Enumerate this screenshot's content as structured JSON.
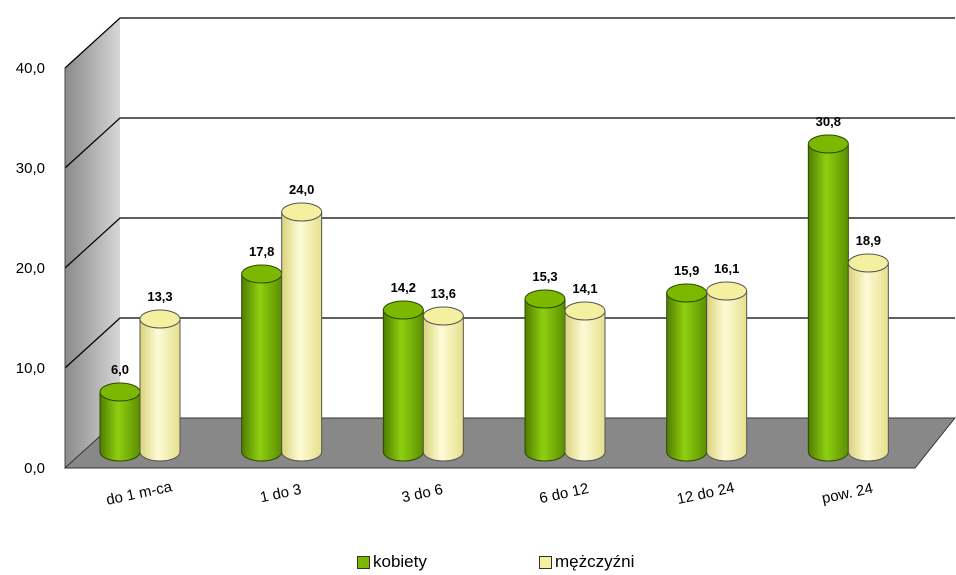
{
  "chart_data": {
    "type": "bar",
    "categories": [
      "do 1 m-ca",
      "1 do 3",
      "3 do 6",
      "6 do 12",
      "12 do 24",
      "pow. 24"
    ],
    "series": [
      {
        "name": "kobiety",
        "values": [
          6.0,
          17.8,
          14.2,
          15.3,
          15.9,
          30.8
        ],
        "labels": [
          "6,0",
          "17,8",
          "14,2",
          "15,3",
          "15,9",
          "30,8"
        ]
      },
      {
        "name": "mężczyźni",
        "values": [
          13.3,
          24.0,
          13.6,
          14.1,
          16.1,
          18.9
        ],
        "labels": [
          "13,3",
          "24,0",
          "13,6",
          "14,1",
          "16,1",
          "18,9"
        ]
      }
    ],
    "y_ticks": [
      "0,0",
      "10,0",
      "20,0",
      "30,0",
      "40,0"
    ],
    "ylim": [
      0,
      40
    ],
    "grid": true,
    "legend_position": "bottom",
    "colors": {
      "kobiety": "#7cb800",
      "kobiety_dark": "#4f7d00",
      "kobiety_light": "#a5d63a",
      "mezczyzni": "#f5f0a0",
      "mezczyzni_dark": "#d9d27a",
      "mezczyzni_light": "#fdfbd6",
      "floor": "#888888",
      "side_wall": "#b0b0b0"
    }
  },
  "legend": {
    "item1": "kobiety",
    "item2": "mężczyźni"
  }
}
